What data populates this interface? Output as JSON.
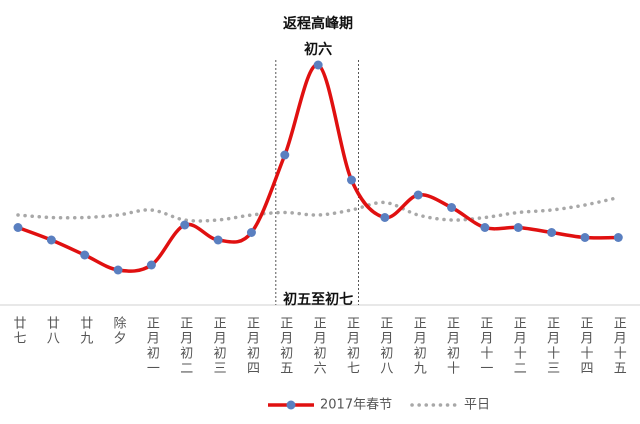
{
  "chart_data": {
    "type": "line",
    "title": "返程高峰期",
    "annotations": {
      "peak_label": "初六",
      "range_label": "初五至初七"
    },
    "categories": [
      "廿七",
      "廿八",
      "廿九",
      "除夕",
      "正月初一",
      "正月初二",
      "正月初三",
      "正月初四",
      "正月初五",
      "正月初六",
      "正月初七",
      "正月初八",
      "正月初九",
      "正月初十",
      "正月十一",
      "正月十二",
      "正月十三",
      "正月十四",
      "正月十五"
    ],
    "ylim": [
      0,
      100
    ],
    "series": [
      {
        "name": "2017年春节",
        "color": "#e01010",
        "marker_color": "#5a7fc0",
        "style": "solid",
        "values": [
          31,
          26,
          20,
          14,
          16,
          32,
          26,
          29,
          60,
          96,
          50,
          35,
          44,
          39,
          31,
          31,
          29,
          27,
          27
        ]
      },
      {
        "name": "平日",
        "color": "#a8a8a8",
        "style": "dotted",
        "values": [
          36,
          35,
          35,
          36,
          38,
          34,
          34,
          36,
          37,
          36,
          38,
          41,
          36,
          34,
          35,
          37,
          38,
          40,
          43
        ]
      }
    ]
  }
}
